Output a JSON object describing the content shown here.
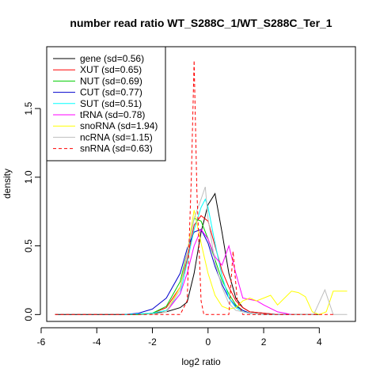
{
  "chart_data": {
    "type": "line",
    "title": "number read ratio WT_S288C_1/WT_S288C_Ter_1",
    "xlabel": "log2 ratio",
    "ylabel": "density",
    "xlim": [
      -5.8,
      5.3
    ],
    "ylim": [
      -0.05,
      1.95
    ],
    "xticks": [
      -6,
      -4,
      -2,
      0,
      2,
      4
    ],
    "yticks": [
      0.0,
      0.5,
      1.0,
      1.5
    ],
    "ytick_labels": [
      "0.0",
      "0.5",
      "1.0",
      "1.5"
    ],
    "legend_position": "top-left",
    "grid": false,
    "series": [
      {
        "name": "gene (sd=0.56)",
        "color": "#000000",
        "dashed": false,
        "x": [
          -5.5,
          -3,
          -2.5,
          -2,
          -1.5,
          -1,
          -0.75,
          -0.5,
          -0.25,
          0,
          0.25,
          0.5,
          0.75,
          1,
          1.25,
          1.5,
          2,
          2.5,
          3,
          4
        ],
        "y": [
          0,
          0,
          0,
          0.01,
          0.02,
          0.05,
          0.09,
          0.3,
          0.6,
          0.8,
          0.88,
          0.6,
          0.3,
          0.12,
          0.05,
          0.02,
          0.01,
          0,
          0,
          0
        ]
      },
      {
        "name": "XUT (sd=0.65)",
        "color": "#ff0000",
        "dashed": false,
        "x": [
          -3,
          -2.5,
          -2,
          -1.5,
          -1,
          -0.75,
          -0.5,
          -0.25,
          0,
          0.25,
          0.5,
          0.75,
          1,
          1.25,
          1.5,
          2,
          2.5,
          3
        ],
        "y": [
          0,
          0,
          0.01,
          0.05,
          0.2,
          0.4,
          0.65,
          0.72,
          0.68,
          0.5,
          0.32,
          0.2,
          0.1,
          0.05,
          0.02,
          0.01,
          0,
          0
        ]
      },
      {
        "name": "NUT (sd=0.69)",
        "color": "#00cd00",
        "dashed": false,
        "x": [
          -3,
          -2.5,
          -2,
          -1.5,
          -1,
          -0.75,
          -0.5,
          -0.25,
          0,
          0.25,
          0.5,
          0.75,
          1,
          1.25,
          1.5,
          2,
          2.5,
          3
        ],
        "y": [
          0,
          0,
          0.01,
          0.06,
          0.24,
          0.45,
          0.7,
          0.68,
          0.55,
          0.4,
          0.25,
          0.15,
          0.07,
          0.03,
          0.01,
          0,
          0,
          0
        ]
      },
      {
        "name": "CUT (sd=0.77)",
        "color": "#0000cd",
        "dashed": false,
        "x": [
          -3,
          -2.5,
          -2,
          -1.5,
          -1,
          -0.75,
          -0.5,
          -0.25,
          0,
          0.25,
          0.5,
          0.75,
          1,
          1.25,
          1.5,
          2,
          2.5,
          3
        ],
        "y": [
          0,
          0.01,
          0.04,
          0.12,
          0.3,
          0.48,
          0.6,
          0.62,
          0.52,
          0.35,
          0.22,
          0.12,
          0.06,
          0.03,
          0.01,
          0,
          0,
          0
        ]
      },
      {
        "name": "SUT (sd=0.51)",
        "color": "#00ffff",
        "dashed": false,
        "x": [
          -3,
          -2,
          -1.5,
          -1,
          -0.75,
          -0.5,
          -0.25,
          -0.1,
          0,
          0.25,
          0.5,
          0.75,
          1,
          1.25,
          1.5,
          2,
          2.5
        ],
        "y": [
          0,
          0.01,
          0.03,
          0.15,
          0.38,
          0.62,
          0.78,
          0.84,
          0.78,
          0.52,
          0.28,
          0.12,
          0.05,
          0.02,
          0.01,
          0,
          0
        ]
      },
      {
        "name": "tRNA (sd=0.78)",
        "color": "#ff00ff",
        "dashed": false,
        "x": [
          -2,
          -1.5,
          -1,
          -0.75,
          -0.5,
          -0.25,
          0,
          0.25,
          0.5,
          0.75,
          1,
          1.25,
          1.5,
          1.75,
          2,
          2.5,
          3
        ],
        "y": [
          0,
          0.02,
          0.15,
          0.3,
          0.5,
          0.62,
          0.55,
          0.42,
          0.36,
          0.5,
          0.3,
          0.12,
          0.11,
          0.1,
          0.07,
          0.02,
          0
        ]
      },
      {
        "name": "snoRNA (sd=1.94)",
        "color": "#ffff00",
        "dashed": false,
        "x": [
          -2,
          -1.5,
          -1,
          -0.75,
          -0.5,
          -0.25,
          0,
          0.25,
          0.5,
          0.75,
          1,
          1.25,
          1.5,
          1.75,
          2,
          2.25,
          2.5,
          2.75,
          3,
          3.25,
          3.5,
          3.75,
          4,
          4.25,
          4.5,
          4.75,
          5
        ],
        "y": [
          0,
          0.02,
          0.2,
          0.45,
          0.76,
          0.52,
          0.3,
          0.14,
          0.06,
          0.04,
          0.05,
          0.1,
          0.12,
          0.1,
          0.12,
          0.14,
          0.07,
          0.12,
          0.17,
          0.16,
          0.13,
          0.02,
          0.0,
          0.02,
          0.17,
          0.17,
          0.17
        ]
      },
      {
        "name": "ncRNA (sd=1.15)",
        "color": "#bebebe",
        "dashed": false,
        "x": [
          -2,
          -1.5,
          -1,
          -0.75,
          -0.5,
          -0.25,
          -0.1,
          0,
          0.25,
          0.5,
          0.75,
          1,
          1.5,
          2,
          2.5,
          3,
          3.5,
          3.8,
          4.2,
          4.5,
          4.8,
          5
        ],
        "y": [
          0,
          0.02,
          0.18,
          0.45,
          0.7,
          0.84,
          0.93,
          0.7,
          0.38,
          0.2,
          0.08,
          0.03,
          0.01,
          0,
          0,
          0,
          0,
          0,
          0.18,
          0,
          0,
          0
        ]
      },
      {
        "name": "snRNA (sd=0.63)",
        "color": "#ff0000",
        "dashed": true,
        "x": [
          -5.5,
          -1.5,
          -1,
          -0.75,
          -0.6,
          -0.5,
          -0.4,
          -0.25,
          -0.15,
          0,
          0.25,
          0.5,
          0.75,
          0.9,
          1.05,
          1.25,
          1.5,
          3,
          4.5
        ],
        "y": [
          0,
          0,
          0,
          0.1,
          1.0,
          1.85,
          0.9,
          0.1,
          0.0,
          0.0,
          0.0,
          0.0,
          0.0,
          0.46,
          0.1,
          0,
          0,
          0,
          0
        ]
      }
    ]
  }
}
